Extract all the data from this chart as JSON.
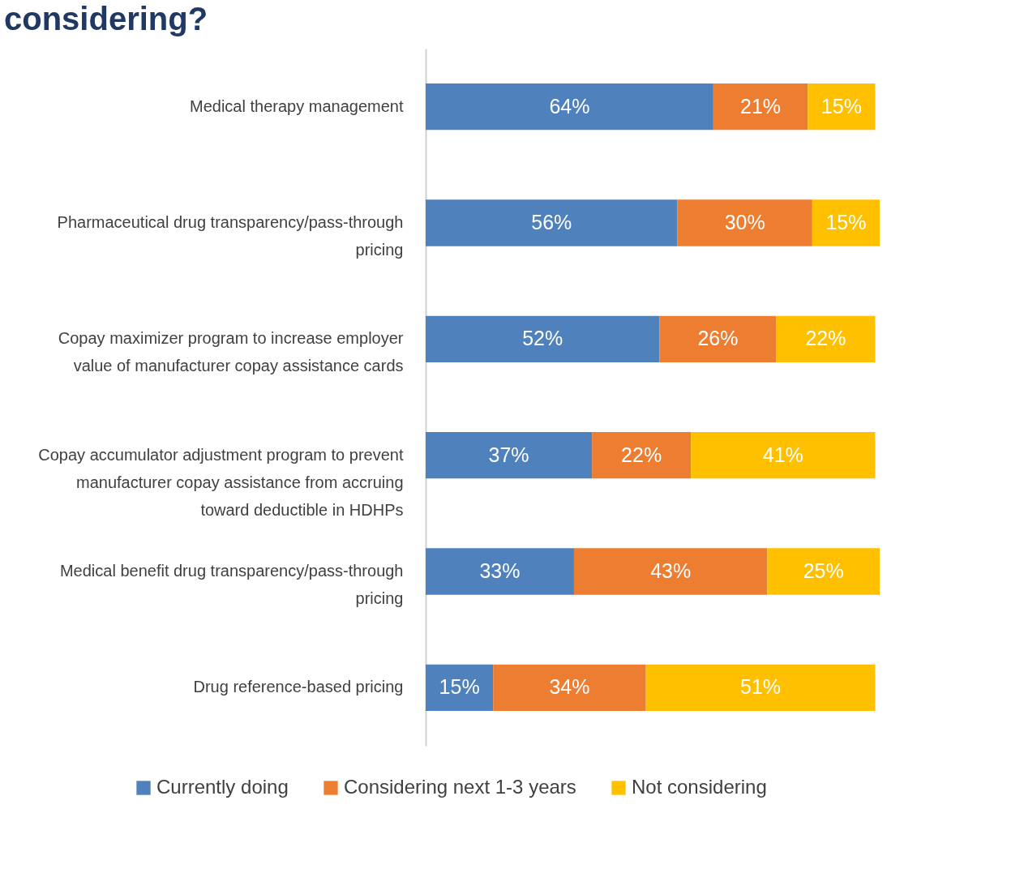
{
  "chart_data": {
    "type": "bar",
    "orientation": "horizontal",
    "stacked": true,
    "title": "considering?",
    "categories": [
      "Medical therapy management",
      "Pharmaceutical drug transparency/pass-through pricing",
      "Copay maximizer program to increase employer value of manufacturer copay assistance cards",
      "Copay accumulator adjustment program to prevent manufacturer copay assistance from accruing toward deductible in HDHPs",
      "Medical benefit drug transparency/pass-through pricing",
      "Drug reference-based pricing"
    ],
    "series": [
      {
        "name": "Currently doing",
        "color": "#4f81bd",
        "values": [
          64,
          56,
          52,
          37,
          33,
          15
        ],
        "value_labels": [
          "64%",
          "56%",
          "52%",
          "37%",
          "33%",
          "15%"
        ]
      },
      {
        "name": "Considering next 1-3 years",
        "color": "#ed7d31",
        "values": [
          21,
          30,
          26,
          22,
          43,
          34
        ],
        "value_labels": [
          "21%",
          "30%",
          "26%",
          "22%",
          "43%",
          "34%"
        ]
      },
      {
        "name": "Not considering",
        "color": "#ffc000",
        "values": [
          15,
          15,
          22,
          41,
          25,
          51
        ],
        "value_labels": [
          "15%",
          "15%",
          "22%",
          "41%",
          "25%",
          "51%"
        ]
      }
    ],
    "legend": "bottom",
    "grid": false
  }
}
